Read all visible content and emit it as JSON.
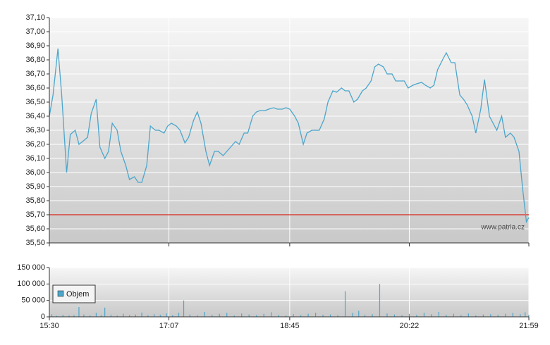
{
  "chart_data": [
    {
      "type": "line",
      "x": [
        930,
        933,
        937,
        940,
        944,
        947,
        951,
        954,
        957,
        961,
        964,
        968,
        971,
        975,
        978,
        981,
        985,
        988,
        992,
        995,
        999,
        1002,
        1005,
        1009,
        1012,
        1016,
        1019,
        1023,
        1026,
        1029,
        1033,
        1036,
        1040,
        1043,
        1047,
        1050,
        1053,
        1057,
        1060,
        1064,
        1067,
        1071,
        1074,
        1077,
        1081,
        1084,
        1088,
        1091,
        1095,
        1098,
        1101,
        1105,
        1108,
        1112,
        1115,
        1119,
        1122,
        1125,
        1129,
        1132,
        1136,
        1139,
        1143,
        1146,
        1149,
        1153,
        1156,
        1160,
        1163,
        1167,
        1170,
        1173,
        1177,
        1180,
        1184,
        1187,
        1191,
        1194,
        1197,
        1201,
        1204,
        1208,
        1211,
        1215,
        1218,
        1221,
        1225,
        1228,
        1232,
        1235,
        1239,
        1242,
        1245,
        1249,
        1252,
        1256,
        1259,
        1263,
        1266,
        1269,
        1273,
        1276,
        1280,
        1283,
        1287,
        1290,
        1293,
        1297,
        1300,
        1304,
        1307,
        1311,
        1314,
        1317,
        1319
      ],
      "series": [
        {
          "color": "#4ba6cc",
          "values": [
            36.4,
            36.55,
            36.88,
            36.55,
            36.0,
            36.27,
            36.3,
            36.2,
            36.22,
            36.25,
            36.42,
            36.52,
            36.18,
            36.1,
            36.15,
            36.35,
            36.3,
            36.15,
            36.05,
            35.95,
            35.97,
            35.93,
            35.93,
            36.05,
            36.33,
            36.3,
            36.3,
            36.28,
            36.33,
            36.35,
            36.33,
            36.3,
            36.21,
            36.25,
            36.37,
            36.43,
            36.35,
            36.15,
            36.05,
            36.15,
            36.15,
            36.12,
            36.15,
            36.18,
            36.22,
            36.2,
            36.28,
            36.28,
            36.4,
            36.43,
            36.44,
            36.44,
            36.45,
            36.46,
            36.45,
            36.45,
            36.46,
            36.45,
            36.4,
            36.35,
            36.2,
            36.28,
            36.3,
            36.3,
            36.3,
            36.38,
            36.5,
            36.58,
            36.57,
            36.6,
            36.58,
            36.58,
            36.5,
            36.52,
            36.58,
            36.6,
            36.65,
            36.75,
            36.77,
            36.75,
            36.7,
            36.7,
            36.65,
            36.65,
            36.65,
            36.6,
            36.62,
            36.63,
            36.64,
            36.62,
            36.6,
            36.62,
            36.73,
            36.8,
            36.85,
            36.78,
            36.78,
            36.55,
            36.52,
            36.48,
            36.4,
            36.28,
            36.45,
            36.66,
            36.4,
            36.35,
            36.3,
            36.4,
            36.25,
            36.28,
            36.25,
            36.15,
            35.88,
            35.65,
            35.68
          ]
        }
      ],
      "xlim": [
        930,
        1319
      ],
      "ylim": [
        35.5,
        37.1
      ],
      "yticks": [
        {
          "value": 35.5,
          "label": "35,50"
        },
        {
          "value": 35.6,
          "label": "35,60"
        },
        {
          "value": 35.7,
          "label": "35,70"
        },
        {
          "value": 35.8,
          "label": "35,80"
        },
        {
          "value": 35.9,
          "label": "35,90"
        },
        {
          "value": 36.0,
          "label": "36,00"
        },
        {
          "value": 36.1,
          "label": "36,10"
        },
        {
          "value": 36.2,
          "label": "36,20"
        },
        {
          "value": 36.3,
          "label": "36,30"
        },
        {
          "value": 36.4,
          "label": "36,40"
        },
        {
          "value": 36.5,
          "label": "36,50"
        },
        {
          "value": 36.6,
          "label": "36,60"
        },
        {
          "value": 36.7,
          "label": "36,70"
        },
        {
          "value": 36.8,
          "label": "36,80"
        },
        {
          "value": 36.9,
          "label": "36,90"
        },
        {
          "value": 37.0,
          "label": "37,00"
        },
        {
          "value": 37.1,
          "label": "37,10"
        }
      ],
      "reference_line": {
        "value": 35.7,
        "color": "#d9261c"
      },
      "annotation": "www.patria.cz",
      "grid": true
    },
    {
      "type": "bar",
      "x": [
        932,
        936,
        941,
        946,
        950,
        954,
        958,
        963,
        968,
        972,
        975,
        980,
        985,
        990,
        995,
        1000,
        1005,
        1010,
        1015,
        1020,
        1025,
        1030,
        1035,
        1039,
        1044,
        1050,
        1056,
        1062,
        1068,
        1074,
        1080,
        1086,
        1092,
        1098,
        1104,
        1110,
        1116,
        1122,
        1128,
        1134,
        1140,
        1146,
        1152,
        1158,
        1164,
        1170,
        1176,
        1181,
        1186,
        1192,
        1198,
        1204,
        1210,
        1216,
        1222,
        1228,
        1234,
        1240,
        1246,
        1252,
        1258,
        1264,
        1270,
        1276,
        1282,
        1288,
        1294,
        1300,
        1306,
        1312,
        1316,
        1319
      ],
      "series": [
        {
          "name": "Objem",
          "color": "#4ba6cc",
          "values": [
            8000,
            3000,
            6000,
            4000,
            5000,
            30000,
            7000,
            4000,
            12000,
            5000,
            28000,
            6000,
            4000,
            9000,
            5000,
            7000,
            13000,
            5000,
            8000,
            6000,
            10000,
            5000,
            12000,
            50000,
            7000,
            5000,
            15000,
            6000,
            9000,
            12000,
            4000,
            10000,
            7000,
            5000,
            9000,
            14000,
            6000,
            4000,
            8000,
            5000,
            9000,
            12000,
            6000,
            7000,
            5000,
            78000,
            12000,
            18000,
            6000,
            8000,
            100000,
            10000,
            7000,
            5000,
            9000,
            6000,
            12000,
            8000,
            15000,
            6000,
            9000,
            5000,
            10000,
            4000,
            7000,
            8000,
            6000,
            9000,
            12000,
            8000,
            14000,
            6000
          ]
        }
      ],
      "xlim": [
        930,
        1319
      ],
      "xticks": [
        {
          "value": 930,
          "label": "15:30"
        },
        {
          "value": 1027,
          "label": "17:07"
        },
        {
          "value": 1125,
          "label": "18:45"
        },
        {
          "value": 1222,
          "label": "20:22"
        },
        {
          "value": 1319,
          "label": "21:59"
        }
      ],
      "ylim": [
        0,
        150000
      ],
      "yticks": [
        0,
        {
          "value": 50000,
          "label": "50 000"
        },
        {
          "value": 100000,
          "label": "100 000"
        },
        {
          "value": 150000,
          "label": "150 000"
        }
      ],
      "legend": "left",
      "grid": true
    }
  ]
}
